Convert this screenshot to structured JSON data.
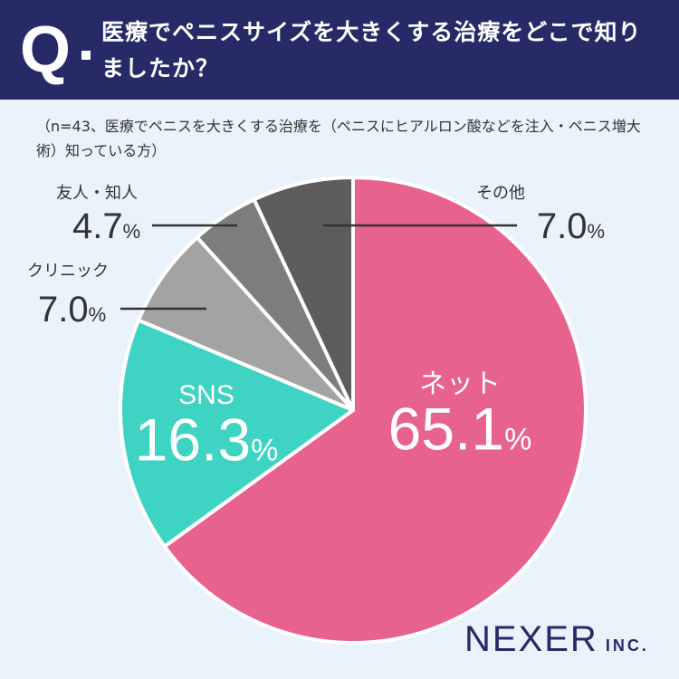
{
  "header": {
    "q_mark": "Q",
    "question": "医療でペニスサイズを大きくする治療をどこで知りましたか？"
  },
  "note": "（n=43、医療でペニスを大きくする治療を（ペニスにヒアルロン酸などを注入・ペニス増大術）知っている方）",
  "brand": {
    "name": "NEXER",
    "suffix": "INC."
  },
  "colors": {
    "header_bg": "#262a66",
    "background": "#eaf2fb",
    "net": "#e8628f",
    "sns": "#3ed3c2",
    "clinic": "#a3a3a3",
    "friends": "#7d7d7d",
    "other": "#5e5c5c"
  },
  "chart_data": {
    "type": "pie",
    "title": "",
    "unit": "%",
    "slices": [
      {
        "label": "ネット",
        "value": 65.1,
        "color": "#e8628f"
      },
      {
        "label": "SNS",
        "value": 16.3,
        "color": "#3ed3c2"
      },
      {
        "label": "クリニック",
        "value": 7.0,
        "color": "#a3a3a3"
      },
      {
        "label": "友人・知人",
        "value": 4.7,
        "color": "#7d7d7d"
      },
      {
        "label": "その他",
        "value": 7.0,
        "color": "#5e5c5c"
      }
    ]
  }
}
